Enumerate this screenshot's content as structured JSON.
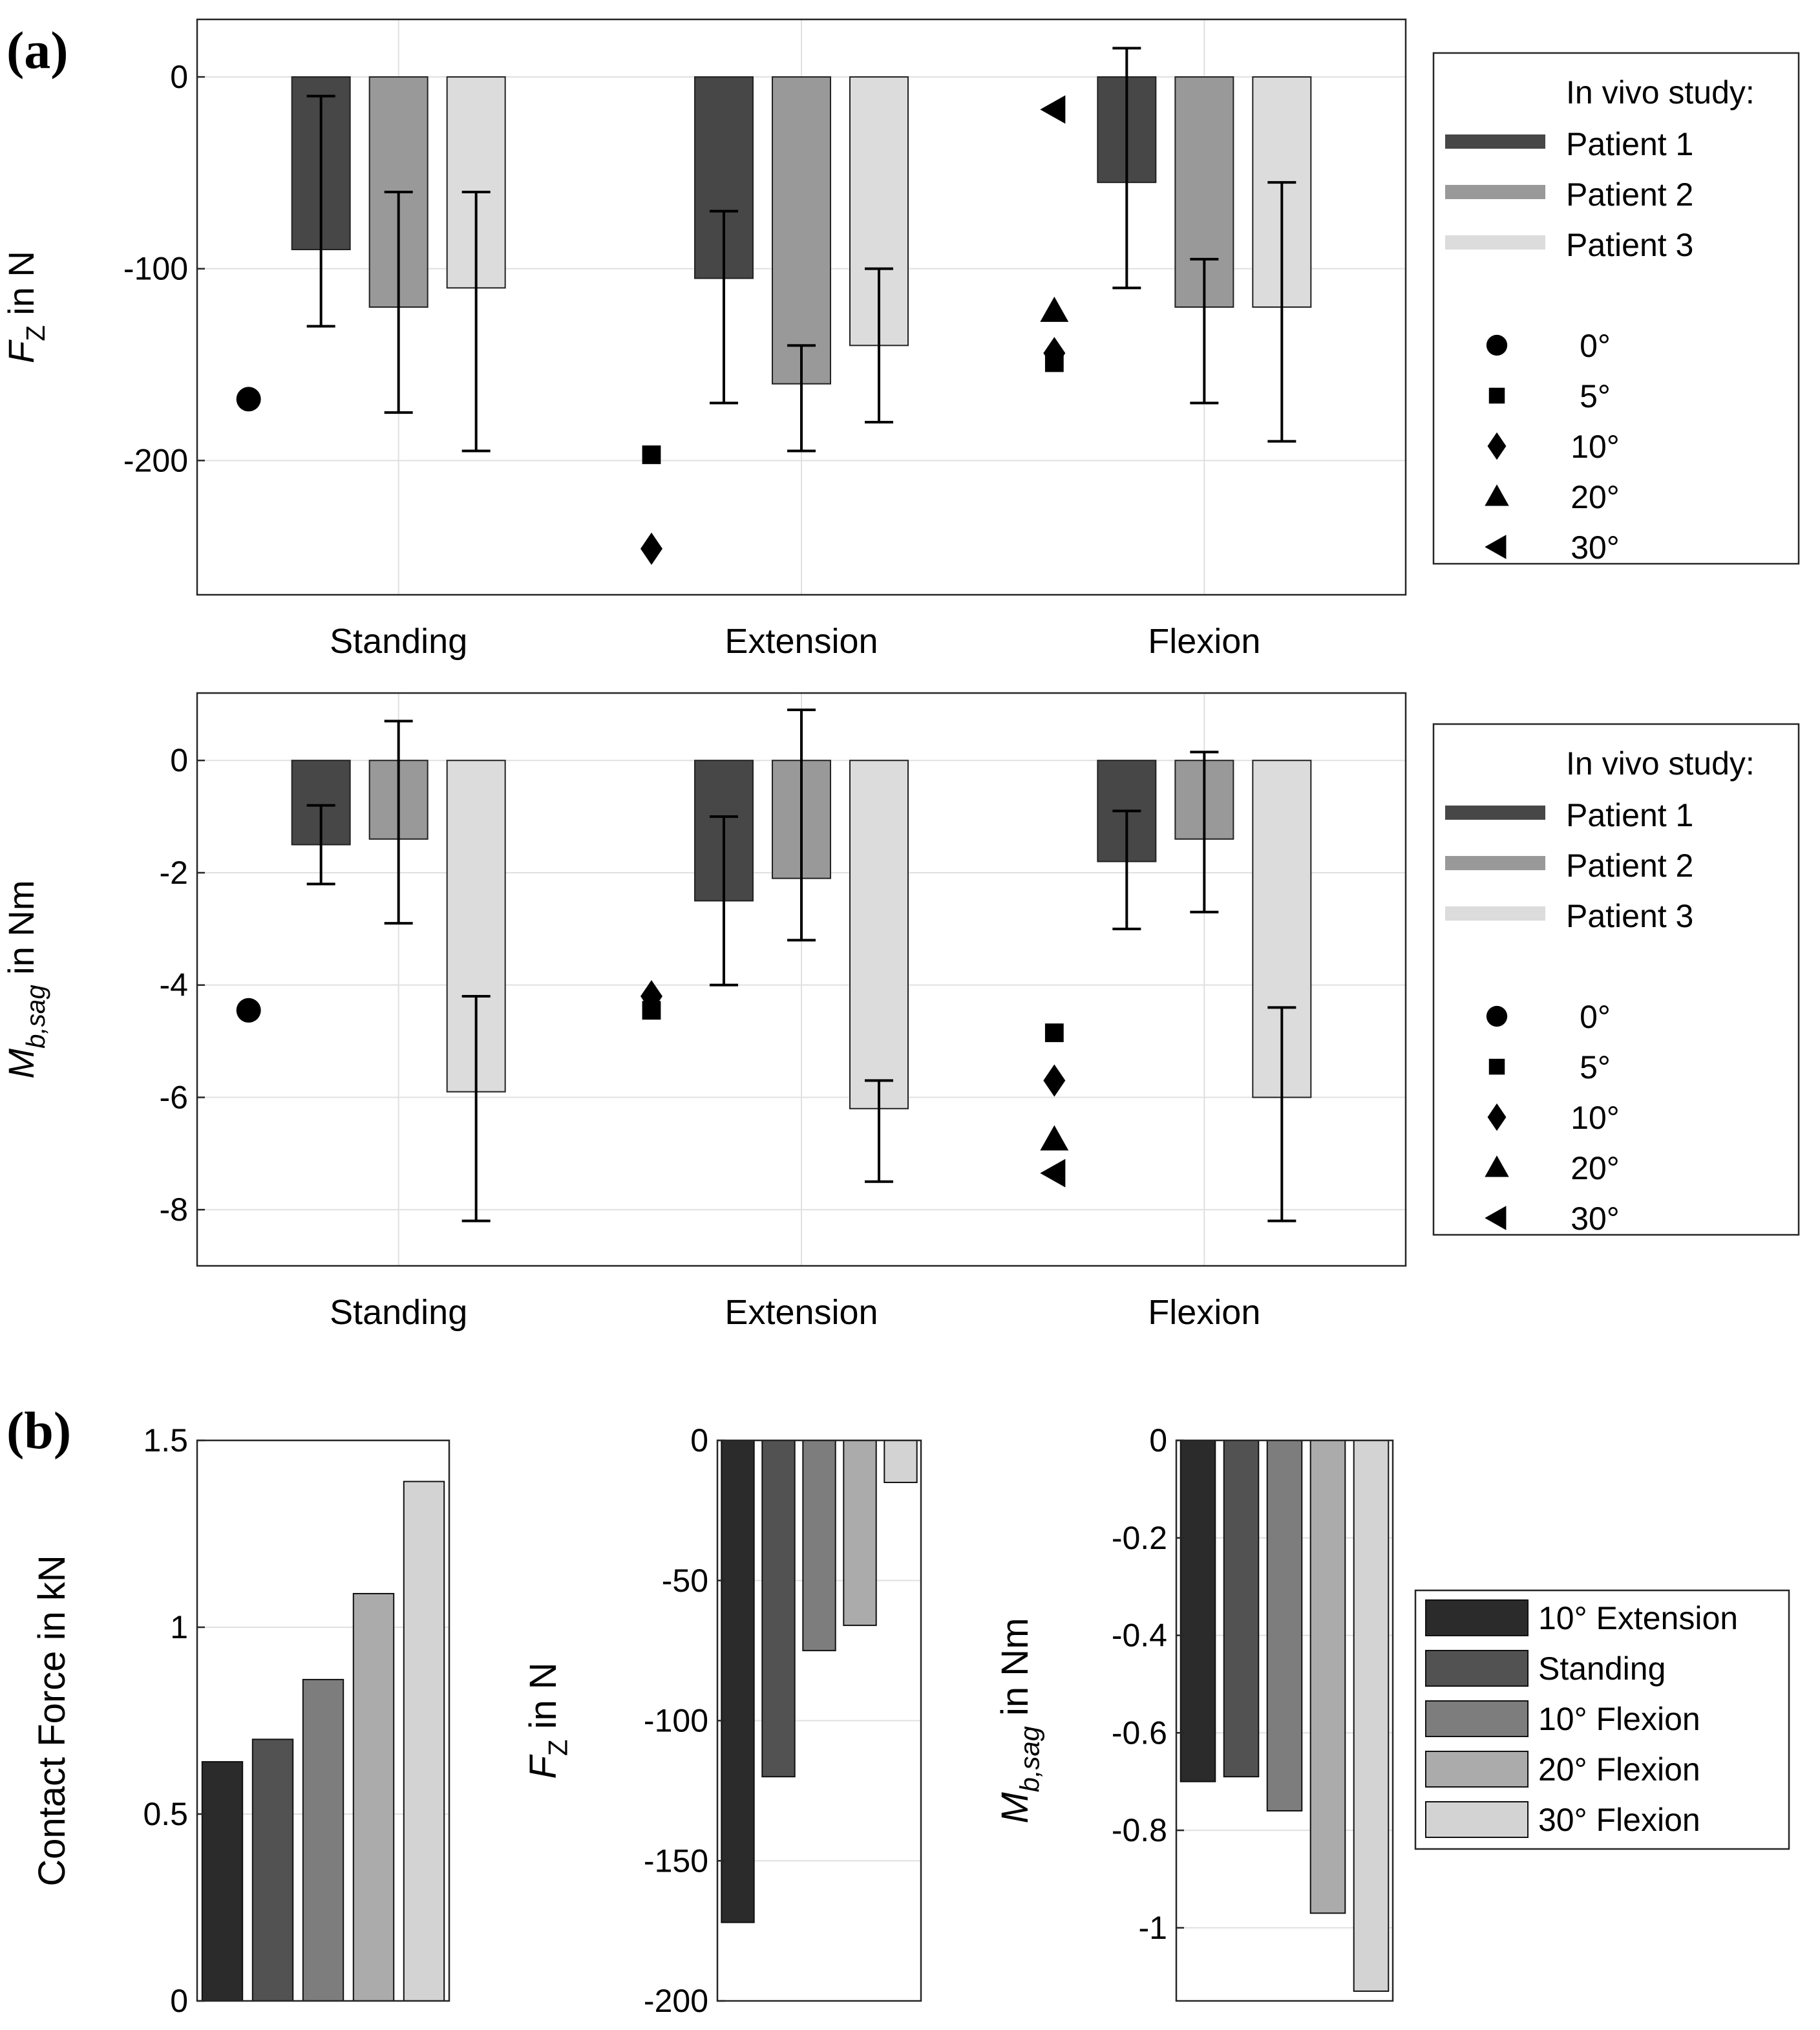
{
  "labels": {
    "a": "(a)",
    "b": "(b)"
  },
  "chart_data": [
    {
      "id": "a-top",
      "type": "bar",
      "ylabel": {
        "main": "F",
        "sub": "Z",
        "rest": " in N"
      },
      "categories": [
        "Standing",
        "Extension",
        "Flexion"
      ],
      "ylim": [
        -270,
        30
      ],
      "yticks": [
        0,
        -100,
        -200
      ],
      "grid": true,
      "series": [
        {
          "name": "Patient 1",
          "color": "#474747",
          "values": [
            -90,
            -105,
            -55
          ],
          "err_low": [
            -130,
            -170,
            -110
          ],
          "err_high": [
            -10,
            -70,
            15
          ]
        },
        {
          "name": "Patient 2",
          "color": "#999999",
          "values": [
            -120,
            -160,
            -120
          ],
          "err_low": [
            -175,
            -195,
            -170
          ],
          "err_high": [
            -60,
            -140,
            -95
          ]
        },
        {
          "name": "Patient 3",
          "color": "#dcdcdc",
          "values": [
            -110,
            -140,
            -120
          ],
          "err_low": [
            -195,
            -180,
            -190
          ],
          "err_high": [
            -60,
            -100,
            -55
          ]
        }
      ],
      "markers": [
        {
          "category": "Standing",
          "angle": "0°",
          "value": -168
        },
        {
          "category": "Extension",
          "angle": "5°",
          "value": -197
        },
        {
          "category": "Extension",
          "angle": "10°",
          "value": -246
        },
        {
          "category": "Flexion",
          "angle": "5°",
          "value": -149
        },
        {
          "category": "Flexion",
          "angle": "10°",
          "value": -144
        },
        {
          "category": "Flexion",
          "angle": "20°",
          "value": -122
        },
        {
          "category": "Flexion",
          "angle": "30°",
          "value": -17
        }
      ],
      "legend": {
        "placement": "right",
        "title": "In vivo study:",
        "entries": [
          "Patient 1",
          "Patient 2",
          "Patient 3"
        ],
        "marker_entries": [
          {
            "shape": "circle",
            "label": "0°"
          },
          {
            "shape": "square",
            "label": "5°"
          },
          {
            "shape": "diamond",
            "label": "10°"
          },
          {
            "shape": "triangle-up",
            "label": "20°"
          },
          {
            "shape": "triangle-left",
            "label": "30°"
          }
        ]
      }
    },
    {
      "id": "a-bottom",
      "type": "bar",
      "ylabel": {
        "main": "M",
        "sub": "b,sag",
        "rest": " in Nm"
      },
      "categories": [
        "Standing",
        "Extension",
        "Flexion"
      ],
      "ylim": [
        -9,
        1.2
      ],
      "yticks": [
        0,
        -2,
        -4,
        -6,
        -8
      ],
      "grid": true,
      "series": [
        {
          "name": "Patient 1",
          "color": "#474747",
          "values": [
            -1.5,
            -2.5,
            -1.8
          ],
          "err_low": [
            -2.2,
            -4.0,
            -3.0
          ],
          "err_high": [
            -0.8,
            -1.0,
            -0.9
          ]
        },
        {
          "name": "Patient 2",
          "color": "#999999",
          "values": [
            -1.4,
            -2.1,
            -1.4
          ],
          "err_low": [
            -2.9,
            -3.2,
            -2.7
          ],
          "err_high": [
            0.7,
            0.9,
            0.15
          ]
        },
        {
          "name": "Patient 3",
          "color": "#dcdcdc",
          "values": [
            -5.9,
            -6.2,
            -6.0
          ],
          "err_low": [
            -8.2,
            -7.5,
            -8.2
          ],
          "err_high": [
            -4.2,
            -5.7,
            -4.4
          ]
        }
      ],
      "markers": [
        {
          "category": "Standing",
          "angle": "0°",
          "value": -4.45
        },
        {
          "category": "Extension",
          "angle": "5°",
          "value": -4.45
        },
        {
          "category": "Extension",
          "angle": "10°",
          "value": -4.2
        },
        {
          "category": "Flexion",
          "angle": "5°",
          "value": -4.85
        },
        {
          "category": "Flexion",
          "angle": "10°",
          "value": -5.7
        },
        {
          "category": "Flexion",
          "angle": "20°",
          "value": -6.75
        },
        {
          "category": "Flexion",
          "angle": "30°",
          "value": -7.35
        }
      ],
      "legend": {
        "placement": "right",
        "title": "In vivo study:",
        "entries": [
          "Patient 1",
          "Patient 2",
          "Patient 3"
        ],
        "marker_entries": [
          {
            "shape": "circle",
            "label": "0°"
          },
          {
            "shape": "square",
            "label": "5°"
          },
          {
            "shape": "diamond",
            "label": "10°"
          },
          {
            "shape": "triangle-up",
            "label": "20°"
          },
          {
            "shape": "triangle-left",
            "label": "30°"
          }
        ]
      }
    },
    {
      "id": "b-1",
      "type": "bar",
      "ylabel": {
        "main": "Contact Force in kN",
        "sub": "",
        "rest": ""
      },
      "categories": [
        "10° Extension",
        "Standing",
        "10° Flexion",
        "20° Flexion",
        "30° Flexion"
      ],
      "values": [
        0.64,
        0.7,
        0.86,
        1.09,
        1.39
      ],
      "ylim": [
        0,
        1.5
      ],
      "yticks": [
        0,
        0.5,
        1,
        1.5
      ],
      "yticklabels": [
        "0",
        "0.5",
        "1",
        "1.5"
      ],
      "grid": true
    },
    {
      "id": "b-2",
      "type": "bar",
      "ylabel": {
        "main": "F",
        "sub": "Z",
        "rest": " in N"
      },
      "categories": [
        "10° Extension",
        "Standing",
        "10° Flexion",
        "20° Flexion",
        "30° Flexion"
      ],
      "values": [
        -172,
        -120,
        -75,
        -66,
        -15
      ],
      "ylim": [
        -200,
        0
      ],
      "yticks": [
        0,
        -50,
        -100,
        -150,
        -200
      ],
      "yticklabels": [
        "0",
        "-50",
        "-100",
        "-150",
        "-200"
      ],
      "grid": true
    },
    {
      "id": "b-3",
      "type": "bar",
      "ylabel": {
        "main": "M",
        "sub": "b,sag",
        "rest": " in Nm"
      },
      "categories": [
        "10° Extension",
        "Standing",
        "10° Flexion",
        "20° Flexion",
        "30° Flexion"
      ],
      "values": [
        -0.7,
        -0.69,
        -0.76,
        -0.97,
        -1.13
      ],
      "ylim": [
        -1.15,
        0
      ],
      "yticks": [
        0,
        -0.2,
        -0.4,
        -0.6,
        -0.8,
        -1
      ],
      "yticklabels": [
        "0",
        "-0.2",
        "-0.4",
        "-0.6",
        "-0.8",
        "-1"
      ],
      "grid": true,
      "legend": {
        "placement": "right",
        "entries": [
          "10° Extension",
          "Standing",
          "10° Flexion",
          "20° Flexion",
          "30° Flexion"
        ]
      }
    }
  ],
  "colors": {
    "b_series": [
      "#2b2b2b",
      "#525252",
      "#7d7d7d",
      "#ababab",
      "#d3d3d3"
    ],
    "grid": "#e0e0e0",
    "axis": "#262626"
  }
}
